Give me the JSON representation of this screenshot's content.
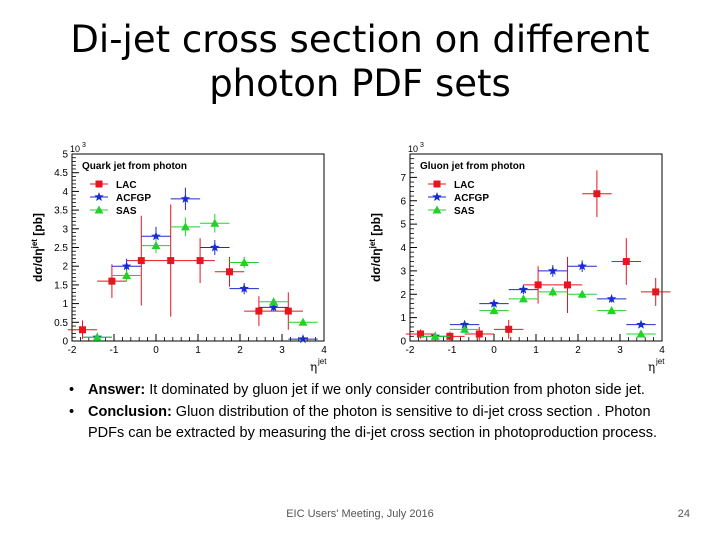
{
  "slide": {
    "title_line1": "Di-jet cross section on different",
    "title_line2": "photon PDF sets",
    "bullets": [
      {
        "bullet": "•",
        "label": "Answer:",
        "text": " It dominated by gluon jet if we only consider contribution from photon side jet."
      },
      {
        "bullet": "•",
        "label": "Conclusion:",
        "text": " Gluon distribution of the photon is sensitive to di-jet cross section . Photon PDFs can be extracted by measuring the di-jet cross section in photoproduction process."
      }
    ],
    "footer": "EIC Users' Meeting, July 2016",
    "page_number": "24"
  },
  "colors": {
    "LAC": "#e8141e",
    "ACFGP": "#1a2bd6",
    "SAS": "#23d12b"
  },
  "chart_data": [
    {
      "type": "scatter",
      "title": "Quark jet from photon",
      "xlabel": "η",
      "xlabel_sup": "jet",
      "ylabel": "dσ/dη",
      "ylabel_sup": "jet",
      "ylabel_unit": "[pb]",
      "multiplier": "10",
      "multiplier_exp": "3",
      "xlim": [
        -2,
        4
      ],
      "ylim": [
        0,
        5
      ],
      "xticks": [
        "-2",
        "-1",
        "0",
        "1",
        "2",
        "3",
        "4"
      ],
      "yticks": [
        "0",
        "0.5",
        "1",
        "1.5",
        "2",
        "2.5",
        "3",
        "3.5",
        "4",
        "4.5",
        "5"
      ],
      "legend": [
        "LAC",
        "ACFGP",
        "SAS"
      ],
      "series": [
        {
          "name": "LAC",
          "marker": "square",
          "x": [
            -1.75,
            -1.05,
            -0.35,
            0.35,
            1.05,
            1.75,
            2.45,
            3.15
          ],
          "y": [
            0.3,
            1.6,
            2.15,
            2.15,
            2.15,
            1.85,
            0.8,
            0.8
          ],
          "yerr": [
            0.25,
            0.45,
            1.2,
            1.5,
            0.6,
            0.4,
            0.4,
            0.5
          ]
        },
        {
          "name": "ACFGP",
          "marker": "star",
          "x": [
            -1.4,
            -0.7,
            0.0,
            0.7,
            1.4,
            2.1,
            2.8,
            3.5
          ],
          "y": [
            0.1,
            2.0,
            2.8,
            3.8,
            2.5,
            1.4,
            0.9,
            0.05
          ],
          "yerr": [
            0.05,
            0.2,
            0.25,
            0.3,
            0.2,
            0.15,
            0.1,
            0.05
          ]
        },
        {
          "name": "SAS",
          "marker": "triangle",
          "x": [
            -1.4,
            -0.7,
            0.0,
            0.7,
            1.4,
            2.1,
            2.8,
            3.5
          ],
          "y": [
            0.1,
            1.75,
            2.55,
            3.05,
            3.15,
            2.1,
            1.05,
            0.5
          ],
          "yerr": [
            0.05,
            0.15,
            0.2,
            0.25,
            0.25,
            0.15,
            0.1,
            0.05
          ]
        }
      ]
    },
    {
      "type": "scatter",
      "title": "Gluon jet from photon",
      "xlabel": "η",
      "xlabel_sup": "jet",
      "ylabel": "dσ/dη",
      "ylabel_sup": "jet",
      "ylabel_unit": "[pb]",
      "multiplier": "10",
      "multiplier_exp": "3",
      "xlim": [
        -2,
        4
      ],
      "ylim": [
        0,
        8
      ],
      "xticks": [
        "-2",
        "-1",
        "0",
        "1",
        "2",
        "3",
        "4"
      ],
      "yticks": [
        "0",
        "1",
        "2",
        "3",
        "4",
        "5",
        "6",
        "7"
      ],
      "legend": [
        "LAC",
        "ACFGP",
        "SAS"
      ],
      "series": [
        {
          "name": "LAC",
          "marker": "square",
          "x": [
            -1.75,
            -1.05,
            -0.35,
            0.35,
            1.05,
            1.75,
            2.45,
            3.15,
            3.85
          ],
          "y": [
            0.3,
            0.2,
            0.3,
            0.5,
            2.4,
            2.4,
            6.3,
            3.4,
            2.1
          ],
          "yerr": [
            0.2,
            0.2,
            0.3,
            0.4,
            0.8,
            1.2,
            1.0,
            1.0,
            0.6
          ]
        },
        {
          "name": "ACFGP",
          "marker": "star",
          "x": [
            -1.4,
            -0.7,
            0.0,
            0.7,
            1.4,
            2.1,
            2.8,
            3.5
          ],
          "y": [
            0.2,
            0.7,
            1.6,
            2.2,
            3.0,
            3.2,
            1.8,
            0.7
          ],
          "yerr": [
            0.05,
            0.1,
            0.15,
            0.2,
            0.25,
            0.25,
            0.15,
            0.1
          ]
        },
        {
          "name": "SAS",
          "marker": "triangle",
          "x": [
            -1.4,
            -0.7,
            0.0,
            0.7,
            1.4,
            2.1,
            2.8,
            3.5
          ],
          "y": [
            0.2,
            0.5,
            1.3,
            1.8,
            2.1,
            2.0,
            1.3,
            0.3
          ],
          "yerr": [
            0.05,
            0.1,
            0.15,
            0.15,
            0.2,
            0.15,
            0.15,
            0.05
          ]
        }
      ]
    }
  ]
}
